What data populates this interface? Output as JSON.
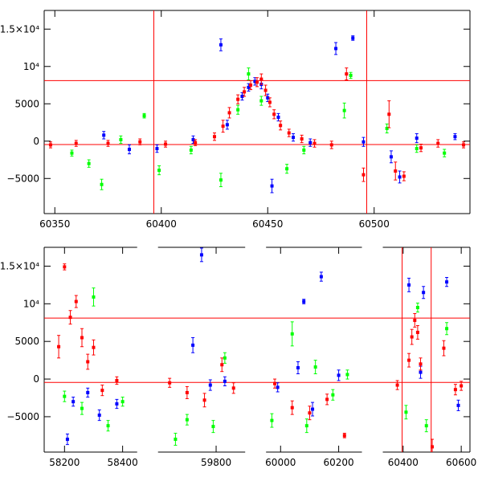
{
  "chart_data": [
    {
      "type": "scatter",
      "title": "",
      "xlabel": "",
      "ylabel": "",
      "xlim": [
        60345,
        60545
      ],
      "ylim": [
        -9700,
        17500
      ],
      "grid": false,
      "x_ticks": [
        {
          "value": 60350,
          "label": "60350"
        },
        {
          "value": 60400,
          "label": "60400"
        },
        {
          "value": 60450,
          "label": "60450"
        },
        {
          "value": 60500,
          "label": "60500"
        }
      ],
      "y_ticks": [
        {
          "value": 15000,
          "label": "1.5×10⁴"
        },
        {
          "value": 10000,
          "label": "10⁴"
        },
        {
          "value": 5000,
          "label": "5000"
        },
        {
          "value": 0,
          "label": "0"
        },
        {
          "value": -5000,
          "label": "−5000"
        }
      ],
      "reference_lines": {
        "horizontal": [
          8100,
          -450
        ],
        "vertical": [
          60396.5,
          60496.5
        ],
        "color": "#ff0000"
      },
      "series": [
        {
          "color": "#0000ff",
          "points": [
            [
              60373,
              800,
              500
            ],
            [
              60385,
              -1100,
              600
            ],
            [
              60398,
              -1000,
              500
            ],
            [
              60415,
              200,
              500
            ],
            [
              60428,
              12900,
              800
            ],
            [
              60431,
              2200,
              600
            ],
            [
              60438,
              6000,
              500
            ],
            [
              60441,
              7200,
              500
            ],
            [
              60444,
              8000,
              500
            ],
            [
              60447,
              7600,
              600
            ],
            [
              60450,
              5800,
              500
            ],
            [
              60452,
              -6000,
              900
            ],
            [
              60455,
              3200,
              500
            ],
            [
              60462,
              500,
              500
            ],
            [
              60470,
              -200,
              500
            ],
            [
              60482,
              12400,
              800
            ],
            [
              60490,
              13800,
              300
            ],
            [
              60495,
              -100,
              600
            ],
            [
              60508,
              -2100,
              800
            ],
            [
              60512,
              -4800,
              800
            ],
            [
              60520,
              400,
              600
            ],
            [
              60538,
              600,
              400
            ]
          ]
        },
        {
          "color": "#00ff00",
          "points": [
            [
              60358,
              -1600,
              400
            ],
            [
              60366,
              -3000,
              500
            ],
            [
              60372,
              -5800,
              700
            ],
            [
              60381,
              200,
              500
            ],
            [
              60392,
              3400,
              300
            ],
            [
              60399,
              -3900,
              600
            ],
            [
              60414,
              -1200,
              500
            ],
            [
              60428,
              -5200,
              900
            ],
            [
              60436,
              4200,
              600
            ],
            [
              60441,
              9000,
              800
            ],
            [
              60447,
              5400,
              600
            ],
            [
              60459,
              -3700,
              600
            ],
            [
              60467,
              -1200,
              500
            ],
            [
              60486,
              4100,
              1000
            ],
            [
              60489,
              8800,
              400
            ],
            [
              60506,
              1700,
              600
            ],
            [
              60520,
              -1000,
              500
            ],
            [
              60533,
              -1600,
              500
            ]
          ]
        },
        {
          "color": "#ff0000",
          "points": [
            [
              60348,
              -500,
              400
            ],
            [
              60360,
              -300,
              400
            ],
            [
              60375,
              -300,
              400
            ],
            [
              60390,
              -100,
              400
            ],
            [
              60402,
              -400,
              400
            ],
            [
              60416,
              -200,
              400
            ],
            [
              60425,
              600,
              500
            ],
            [
              60429,
              2000,
              800
            ],
            [
              60432,
              3800,
              700
            ],
            [
              60436,
              5600,
              600
            ],
            [
              60439,
              6600,
              600
            ],
            [
              60442,
              7500,
              600
            ],
            [
              60445,
              7900,
              600
            ],
            [
              60447,
              8300,
              700
            ],
            [
              60449,
              6800,
              700
            ],
            [
              60451,
              5200,
              600
            ],
            [
              60453,
              3600,
              600
            ],
            [
              60456,
              2100,
              600
            ],
            [
              60460,
              1100,
              500
            ],
            [
              60466,
              300,
              500
            ],
            [
              60472,
              -300,
              500
            ],
            [
              60480,
              -500,
              500
            ],
            [
              60487,
              9000,
              800
            ],
            [
              60495,
              -4500,
              900
            ],
            [
              60507,
              3600,
              1800
            ],
            [
              60510,
              -4000,
              1200
            ],
            [
              60514,
              -4700,
              600
            ],
            [
              60522,
              -900,
              500
            ],
            [
              60530,
              -300,
              500
            ],
            [
              60542,
              -500,
              400
            ]
          ]
        }
      ]
    },
    {
      "type": "scatter",
      "title": "",
      "xlabel": "",
      "ylabel": "",
      "xlim": [
        58130,
        60630
      ],
      "ylim": [
        -9700,
        17500
      ],
      "grid": false,
      "x_breaks": [
        {
          "from": 58450,
          "to": 59600
        },
        {
          "from": 59900,
          "to": 59950
        },
        {
          "from": 60280,
          "to": 60330
        }
      ],
      "x_ticks": [
        {
          "value": 58200,
          "label": "58200"
        },
        {
          "value": 58400,
          "label": "58400"
        },
        {
          "value": 59800,
          "label": "59800"
        },
        {
          "value": 60000,
          "label": "60000"
        },
        {
          "value": 60200,
          "label": "60200"
        },
        {
          "value": 60400,
          "label": "60400"
        },
        {
          "value": 60600,
          "label": "60600"
        }
      ],
      "y_ticks": [
        {
          "value": 15000,
          "label": "1.5×10⁴"
        },
        {
          "value": 10000,
          "label": "10⁴"
        },
        {
          "value": 5000,
          "label": "5000"
        },
        {
          "value": 0,
          "label": "0"
        },
        {
          "value": -5000,
          "label": "−5000"
        }
      ],
      "reference_lines": {
        "horizontal": [
          8100,
          -450
        ],
        "vertical": [
          60396.5,
          60496.5
        ],
        "color": "#ff0000"
      },
      "series": [
        {
          "color": "#0000ff",
          "points": [
            [
              58210,
              -8000,
              700
            ],
            [
              58230,
              -3000,
              600
            ],
            [
              58280,
              -1800,
              600
            ],
            [
              58320,
              -4800,
              700
            ],
            [
              58380,
              -3300,
              600
            ],
            [
              59720,
              4500,
              1000
            ],
            [
              59750,
              16500,
              900
            ],
            [
              59780,
              -800,
              700
            ],
            [
              59830,
              -300,
              600
            ],
            [
              59990,
              -1100,
              600
            ],
            [
              60060,
              1500,
              800
            ],
            [
              60080,
              10300,
              300
            ],
            [
              60110,
              -4000,
              900
            ],
            [
              60140,
              13600,
              600
            ],
            [
              60200,
              500,
              700
            ],
            [
              60420,
              12500,
              900
            ],
            [
              60460,
              900,
              800
            ],
            [
              60470,
              11500,
              800
            ],
            [
              60550,
              12900,
              600
            ],
            [
              60590,
              -3500,
              700
            ]
          ]
        },
        {
          "color": "#00ff00",
          "points": [
            [
              58200,
              -2300,
              700
            ],
            [
              58260,
              -3900,
              800
            ],
            [
              58300,
              10900,
              1200
            ],
            [
              58350,
              -6200,
              700
            ],
            [
              58400,
              -3000,
              600
            ],
            [
              59660,
              -8000,
              800
            ],
            [
              59700,
              -5400,
              700
            ],
            [
              59790,
              -6300,
              800
            ],
            [
              59830,
              2800,
              700
            ],
            [
              59970,
              -5500,
              900
            ],
            [
              60040,
              6000,
              1600
            ],
            [
              60090,
              -6200,
              900
            ],
            [
              60120,
              1600,
              900
            ],
            [
              60180,
              -2100,
              700
            ],
            [
              60230,
              600,
              600
            ],
            [
              60410,
              -4400,
              900
            ],
            [
              60450,
              9500,
              600
            ],
            [
              60480,
              -6200,
              800
            ],
            [
              60550,
              6700,
              800
            ]
          ]
        },
        {
          "color": "#ff0000",
          "points": [
            [
              58180,
              4300,
              1500
            ],
            [
              58200,
              14900,
              400
            ],
            [
              58220,
              8200,
              900
            ],
            [
              58240,
              10300,
              800
            ],
            [
              58260,
              5500,
              1200
            ],
            [
              58280,
              2300,
              1000
            ],
            [
              58300,
              4200,
              1000
            ],
            [
              58330,
              -1500,
              700
            ],
            [
              58380,
              -200,
              500
            ],
            [
              59640,
              -500,
              600
            ],
            [
              59700,
              -1800,
              800
            ],
            [
              59760,
              -2800,
              900
            ],
            [
              59820,
              1900,
              900
            ],
            [
              59860,
              -1200,
              700
            ],
            [
              59980,
              -600,
              600
            ],
            [
              60040,
              -3800,
              900
            ],
            [
              60100,
              -4500,
              900
            ],
            [
              60160,
              -2700,
              700
            ],
            [
              60220,
              -7500,
              300
            ],
            [
              60380,
              -800,
              600
            ],
            [
              60420,
              2500,
              900
            ],
            [
              60430,
              5600,
              1000
            ],
            [
              60440,
              7800,
              900
            ],
            [
              60450,
              6200,
              900
            ],
            [
              60460,
              2000,
              800
            ],
            [
              60500,
              -9000,
              1000
            ],
            [
              60540,
              4100,
              1000
            ],
            [
              60580,
              -1400,
              700
            ],
            [
              60600,
              -900,
              600
            ]
          ]
        }
      ]
    }
  ]
}
